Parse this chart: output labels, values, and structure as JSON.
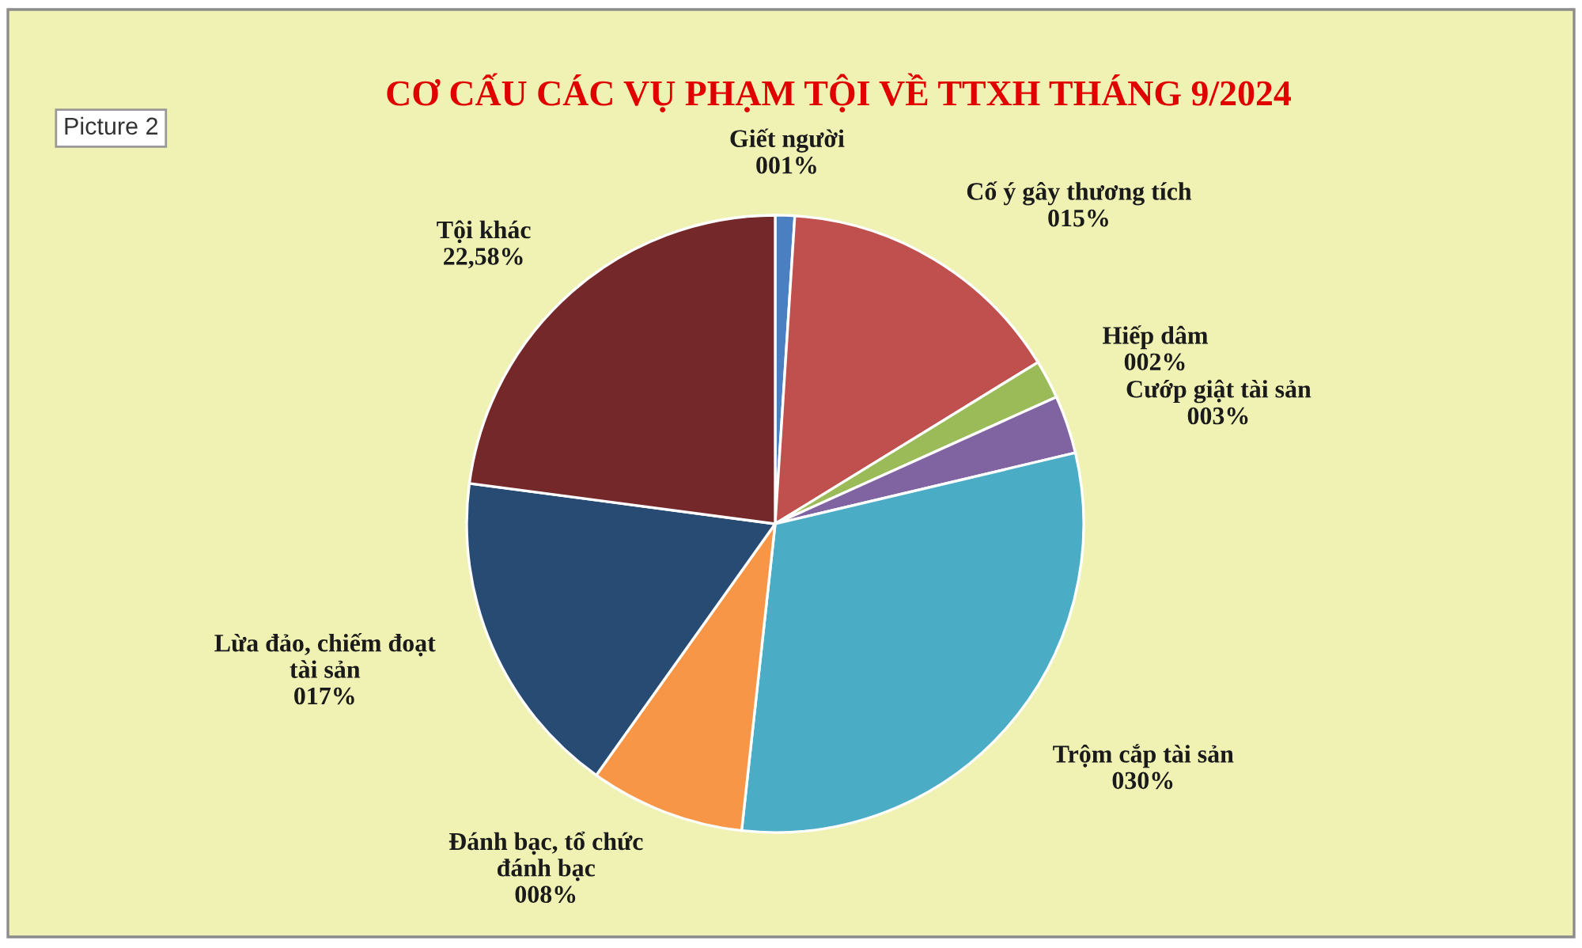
{
  "chart_data": {
    "type": "pie",
    "title": "CƠ CẤU CÁC VỤ PHẠM TỘI VỀ TTXH THÁNG 9/2024",
    "categories": [
      "Giết người",
      "Cố ý gây thương tích",
      "Hiếp dâm",
      "Cướp giật tài sản",
      "Trộm cắp tài sản",
      "Đánh bạc, tổ chức đánh bạc",
      "Lừa đảo, chiếm đoạt tài sản",
      "Tội khác"
    ],
    "values": [
      1,
      15,
      2,
      3,
      30,
      8,
      17,
      22.58
    ],
    "value_labels": [
      "001%",
      "015%",
      "002%",
      "003%",
      "030%",
      "008%",
      "017%",
      "22,58%"
    ],
    "colors": [
      "#4a7fc1",
      "#c0504d",
      "#9bbb59",
      "#8064a2",
      "#4bacc6",
      "#f79646",
      "#284b74",
      "#74282a"
    ],
    "annotations": [
      "Picture 2"
    ]
  }
}
